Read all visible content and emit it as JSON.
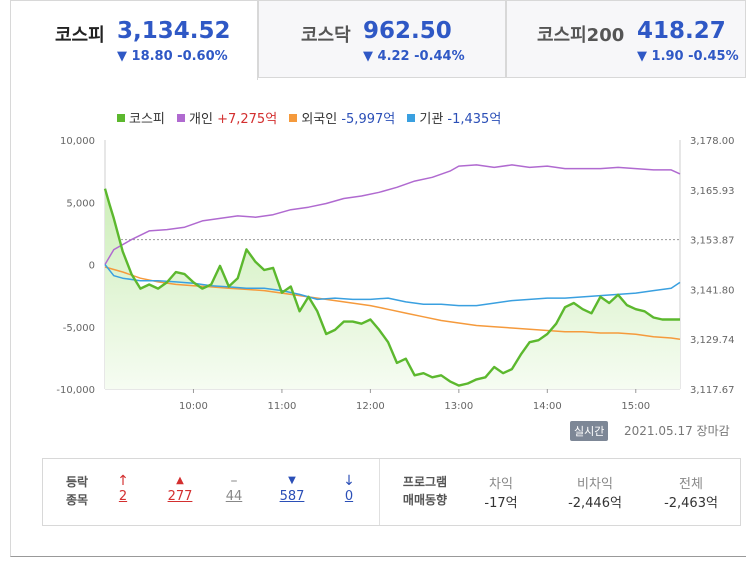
{
  "tabs": [
    {
      "name": "코스피",
      "value": "3,134.52",
      "change": "▼ 18.80 -0.60%"
    },
    {
      "name": "코스닥",
      "value": "962.50",
      "change": "▼ 4.22 -0.44%"
    },
    {
      "name": "코스피200",
      "value": "418.27",
      "change": "▼ 1.90 -0.45%"
    }
  ],
  "legend": {
    "kospi": "코스피",
    "individual_label": "개인",
    "individual_value": "+7,275억",
    "foreign_label": "외국인",
    "foreign_value": "-5,997억",
    "institution_label": "기관",
    "institution_value": "-1,435억"
  },
  "colors": {
    "kospi": "#5cb82e",
    "kospi_fill": "#e3f7d6",
    "individual": "#b06ad0",
    "foreign": "#f59a3c",
    "institution": "#3aa0e0",
    "down": "#2f58c5",
    "up": "#d32f2f"
  },
  "chart_data": {
    "type": "line",
    "x_ticks": [
      "10:00",
      "11:00",
      "12:00",
      "13:00",
      "14:00",
      "15:00"
    ],
    "left_axis": {
      "ticks": [
        "10,000",
        "5,000",
        "0",
        "-5,000",
        "-10,000"
      ],
      "range": [
        -10000,
        10000
      ]
    },
    "right_axis": {
      "ticks": [
        "3,178.00",
        "3,165.93",
        "3,153.87",
        "3,141.80",
        "3,129.74",
        "3,117.67"
      ],
      "range": [
        3117.67,
        3178.0
      ]
    },
    "reference_line": 3153.87,
    "x_range": [
      9.0,
      15.5
    ],
    "series": [
      {
        "name": "코스피",
        "axis": "right",
        "x": [
          9.0,
          9.05,
          9.1,
          9.2,
          9.3,
          9.4,
          9.5,
          9.6,
          9.7,
          9.8,
          9.9,
          10.0,
          10.1,
          10.2,
          10.3,
          10.4,
          10.5,
          10.6,
          10.7,
          10.8,
          10.9,
          11.0,
          11.1,
          11.2,
          11.3,
          11.4,
          11.5,
          11.6,
          11.7,
          11.8,
          11.9,
          12.0,
          12.1,
          12.2,
          12.3,
          12.4,
          12.5,
          12.6,
          12.7,
          12.8,
          12.9,
          13.0,
          13.1,
          13.2,
          13.3,
          13.4,
          13.5,
          13.6,
          13.7,
          13.8,
          13.9,
          14.0,
          14.1,
          14.2,
          14.3,
          14.4,
          14.5,
          14.6,
          14.7,
          14.8,
          14.9,
          15.0,
          15.1,
          15.2,
          15.3,
          15.4,
          15.5
        ],
        "values": [
          3166.2,
          3162.5,
          3159.0,
          3151.0,
          3145.5,
          3142.0,
          3143.0,
          3142.0,
          3143.5,
          3146.0,
          3145.5,
          3143.5,
          3142.0,
          3143.0,
          3147.5,
          3142.5,
          3144.5,
          3151.5,
          3148.5,
          3146.5,
          3147.0,
          3141.0,
          3142.5,
          3136.5,
          3140.0,
          3136.5,
          3131.0,
          3132.0,
          3134.0,
          3134.0,
          3133.5,
          3134.5,
          3132.0,
          3129.0,
          3124.0,
          3125.0,
          3121.0,
          3121.5,
          3120.5,
          3121.0,
          3119.5,
          3118.5,
          3119.0,
          3120.0,
          3120.5,
          3123.0,
          3121.5,
          3122.5,
          3126.0,
          3129.0,
          3129.5,
          3131.0,
          3133.5,
          3137.5,
          3138.5,
          3137.0,
          3136.0,
          3140.0,
          3138.5,
          3140.5,
          3138.0,
          3137.0,
          3136.5,
          3135.0,
          3134.5,
          3134.5,
          3134.5
        ]
      },
      {
        "name": "개인",
        "axis": "left",
        "x": [
          9.0,
          9.1,
          9.3,
          9.5,
          9.7,
          9.9,
          10.1,
          10.3,
          10.5,
          10.7,
          10.9,
          11.1,
          11.3,
          11.5,
          11.7,
          11.9,
          12.1,
          12.3,
          12.5,
          12.7,
          12.9,
          13.0,
          13.2,
          13.4,
          13.6,
          13.8,
          14.0,
          14.2,
          14.4,
          14.6,
          14.8,
          15.0,
          15.2,
          15.4,
          15.5
        ],
        "values": [
          0,
          1200,
          2000,
          2700,
          2800,
          3000,
          3500,
          3700,
          3900,
          3800,
          4000,
          4400,
          4600,
          4900,
          5300,
          5500,
          5800,
          6200,
          6700,
          7000,
          7500,
          7900,
          8000,
          7800,
          8000,
          7800,
          7900,
          7700,
          7700,
          7700,
          7800,
          7700,
          7600,
          7600,
          7275
        ]
      },
      {
        "name": "외국인",
        "axis": "left",
        "x": [
          9.0,
          9.2,
          9.4,
          9.6,
          9.8,
          10.0,
          10.2,
          10.4,
          10.6,
          10.8,
          11.0,
          11.2,
          11.4,
          11.6,
          11.8,
          12.0,
          12.2,
          12.4,
          12.6,
          12.8,
          13.0,
          13.2,
          13.4,
          13.6,
          13.8,
          14.0,
          14.2,
          14.4,
          14.6,
          14.8,
          15.0,
          15.2,
          15.4,
          15.5
        ],
        "values": [
          -200,
          -600,
          -1100,
          -1400,
          -1600,
          -1700,
          -1800,
          -1900,
          -2000,
          -2100,
          -2300,
          -2500,
          -2700,
          -2900,
          -3100,
          -3300,
          -3600,
          -3900,
          -4200,
          -4500,
          -4700,
          -4900,
          -5000,
          -5100,
          -5200,
          -5300,
          -5400,
          -5400,
          -5500,
          -5500,
          -5600,
          -5800,
          -5900,
          -5997
        ]
      },
      {
        "name": "기관",
        "axis": "left",
        "x": [
          9.0,
          9.1,
          9.2,
          9.4,
          9.6,
          9.8,
          10.0,
          10.2,
          10.4,
          10.6,
          10.8,
          11.0,
          11.2,
          11.4,
          11.6,
          11.8,
          12.0,
          12.2,
          12.4,
          12.6,
          12.8,
          13.0,
          13.2,
          13.4,
          13.6,
          13.8,
          14.0,
          14.2,
          14.4,
          14.6,
          14.8,
          15.0,
          15.2,
          15.4,
          15.5
        ],
        "values": [
          0,
          -900,
          -1100,
          -1300,
          -1300,
          -1400,
          -1500,
          -1700,
          -1800,
          -1900,
          -1900,
          -2100,
          -2400,
          -2800,
          -2700,
          -2800,
          -2800,
          -2700,
          -3000,
          -3200,
          -3200,
          -3300,
          -3300,
          -3100,
          -2900,
          -2800,
          -2700,
          -2700,
          -2600,
          -2500,
          -2400,
          -2300,
          -2100,
          -1900,
          -1435
        ]
      }
    ]
  },
  "status": {
    "realtime": "실시간",
    "date": "2021.05.17",
    "market_close": "장마감"
  },
  "breadth": {
    "label1": "등락",
    "label2": "종목",
    "items": [
      {
        "icon": "up-limit-arrow-icon",
        "glyph": "↑",
        "value": "2",
        "color": "red"
      },
      {
        "icon": "up-triangle-icon",
        "glyph": "▲",
        "value": "277",
        "color": "red"
      },
      {
        "icon": "unchanged-dash-icon",
        "glyph": "–",
        "value": "44",
        "color": "gray"
      },
      {
        "icon": "down-triangle-icon",
        "glyph": "▼",
        "value": "587",
        "color": "blue"
      },
      {
        "icon": "down-limit-arrow-icon",
        "glyph": "↓",
        "value": "0",
        "color": "blue"
      }
    ]
  },
  "program": {
    "label1": "프로그램",
    "label2": "매매동향",
    "columns": [
      {
        "header": "차익",
        "value": "-17억"
      },
      {
        "header": "비차익",
        "value": "-2,446억"
      },
      {
        "header": "전체",
        "value": "-2,463억"
      }
    ]
  }
}
